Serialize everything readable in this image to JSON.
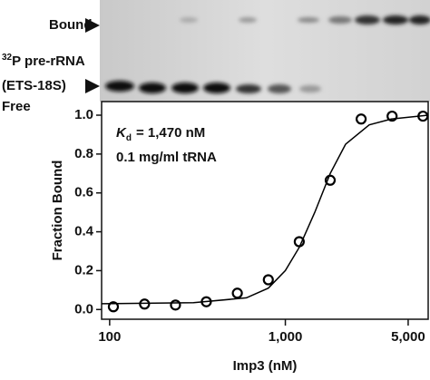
{
  "chart_data": {
    "type": "scatter",
    "gel_labels": {
      "bound": "Bound",
      "isotope": "32",
      "probe": "P pre-rRNA",
      "probe_name": "(ETS-18S)",
      "free": "Free"
    },
    "annotations": [
      "K",
      "d",
      "= 1,470 nM",
      "0.1 mg/ml tRNA"
    ],
    "xlabel": "Imp3 (nM)",
    "ylabel": "Fraction Bound",
    "log_x": true,
    "xlim": [
      90,
      6500
    ],
    "ylim": [
      -0.05,
      1.07
    ],
    "xticks": [
      100,
      {
        "value": 1000,
        "label": "1,000"
      },
      {
        "value": 5000,
        "label": "5,000"
      }
    ],
    "yticks": [
      {
        "value": 0,
        "label": "0.0"
      },
      0.2,
      0.4,
      0.6,
      0.8,
      {
        "value": 1,
        "label": "1.0"
      }
    ],
    "series": [
      {
        "color": "#000000",
        "marker": "circle",
        "x": [
          105,
          158,
          237,
          355,
          533,
          800,
          1200,
          1800,
          2700,
          4050,
          6070
        ],
        "values": [
          0.014,
          0.028,
          0.023,
          0.04,
          0.084,
          0.153,
          0.349,
          0.665,
          0.98,
          0.995,
          0.995
        ]
      },
      {
        "color": "#000000",
        "line": true,
        "x": [
          90,
          300,
          600,
          800,
          1000,
          1200,
          1470,
          1800,
          2200,
          3000,
          4000,
          6500
        ],
        "values": [
          0.03,
          0.035,
          0.06,
          0.11,
          0.2,
          0.32,
          0.5,
          0.7,
          0.85,
          0.95,
          0.98,
          1.0
        ]
      }
    ]
  }
}
